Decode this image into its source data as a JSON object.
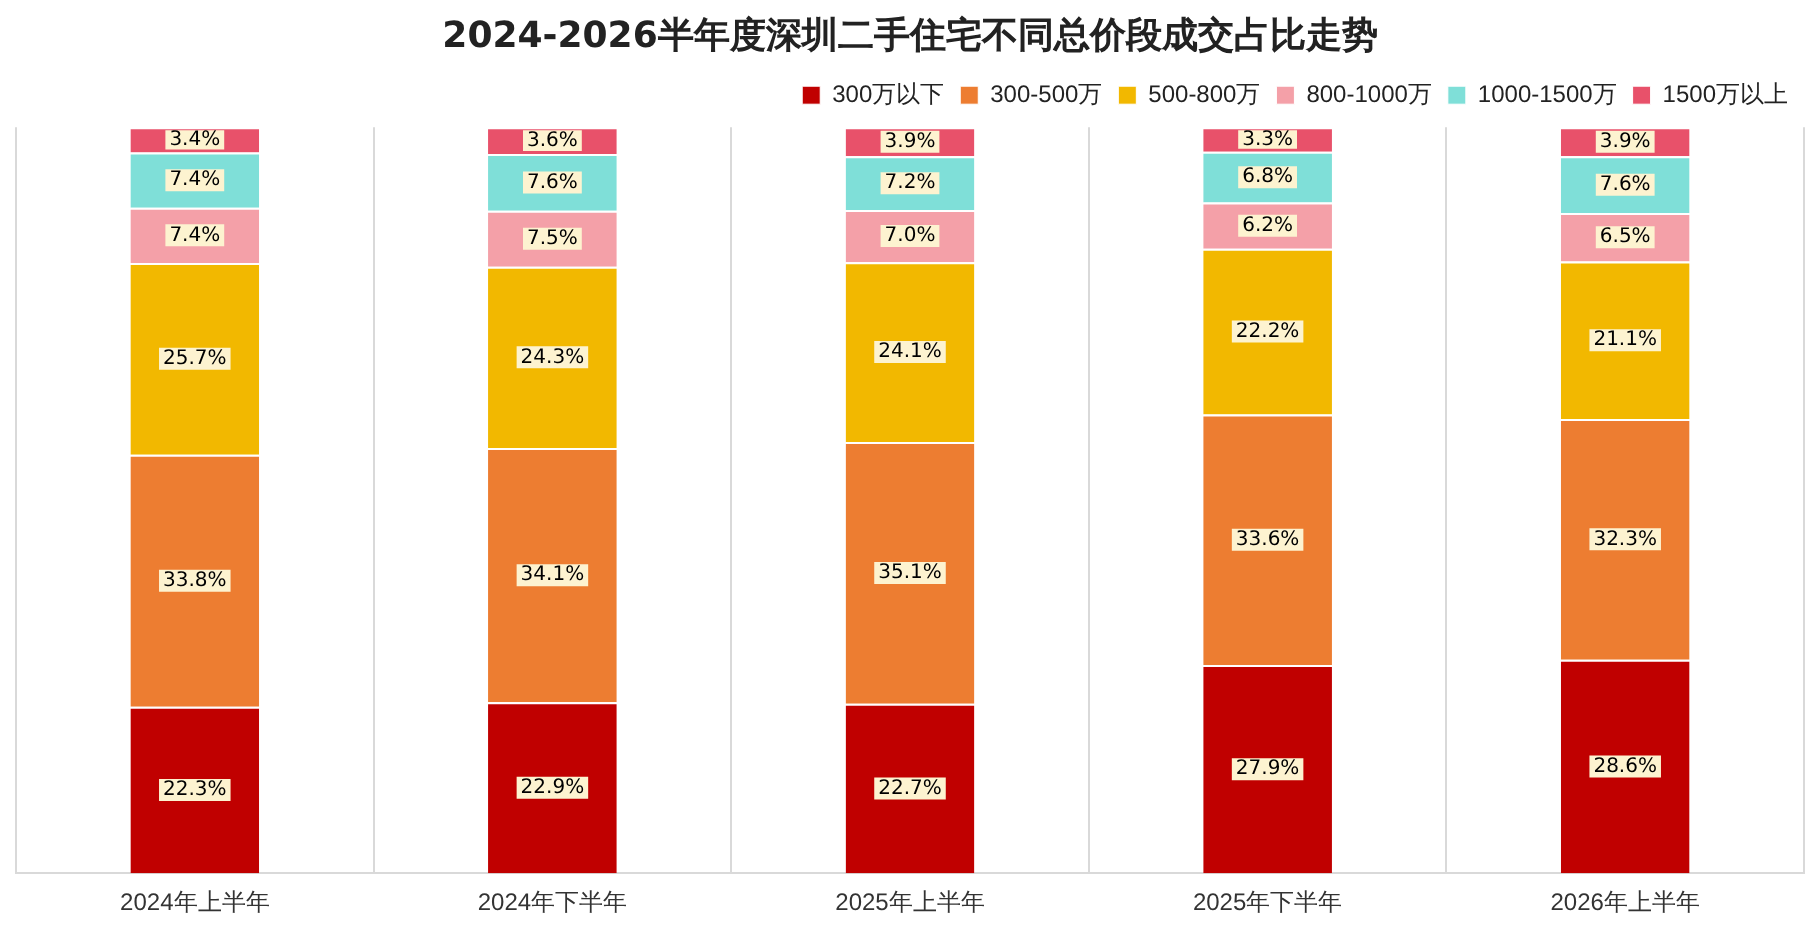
{
  "chart_data": {
    "type": "bar",
    "title": "2024-2026半年度深圳二手住宅不同总价段成交占比走势",
    "categories": [
      "2024年上半年",
      "2024年下半年",
      "2025年上半年",
      "2025年下半年",
      "2026年上半年"
    ],
    "stacked": true,
    "grid": "x",
    "legend": "top right",
    "series": [
      {
        "name": "300万以下",
        "color": "#c00000",
        "values": [
          22.3,
          22.9,
          22.7,
          27.9,
          28.6
        ],
        "value_labels": [
          "22.3%",
          "22.9%",
          "22.7%",
          "27.9%",
          "28.6%"
        ]
      },
      {
        "name": "300-500万",
        "color": "#ed7d31",
        "values": [
          33.8,
          34.1,
          35.1,
          33.6,
          32.3
        ],
        "value_labels": [
          "33.8%",
          "34.1%",
          "35.1%",
          "33.6%",
          "32.3%"
        ]
      },
      {
        "name": "500-800万",
        "color": "#f2b800",
        "values": [
          25.7,
          24.3,
          24.1,
          22.2,
          21.1
        ],
        "value_labels": [
          "25.7%",
          "24.3%",
          "24.1%",
          "22.2%",
          "21.1%"
        ]
      },
      {
        "name": "800-1000万",
        "color": "#f4a0a8",
        "values": [
          7.4,
          7.5,
          7.0,
          6.2,
          6.5
        ],
        "value_labels": [
          "7.4%",
          "7.5%",
          "7.0%",
          "6.2%",
          "6.5%"
        ]
      },
      {
        "name": "1000-1500万",
        "color": "#7fdfd8",
        "values": [
          7.4,
          7.6,
          7.2,
          6.8,
          7.6
        ],
        "value_labels": [
          "7.4%",
          "7.6%",
          "7.2%",
          "6.8%",
          "7.6%"
        ]
      },
      {
        "name": "1500万以上",
        "color": "#e8516a",
        "values": [
          3.4,
          3.6,
          3.9,
          3.3,
          3.9
        ],
        "value_labels": [
          "3.4%",
          "3.6%",
          "3.9%",
          "3.3%",
          "3.9%"
        ]
      }
    ]
  }
}
